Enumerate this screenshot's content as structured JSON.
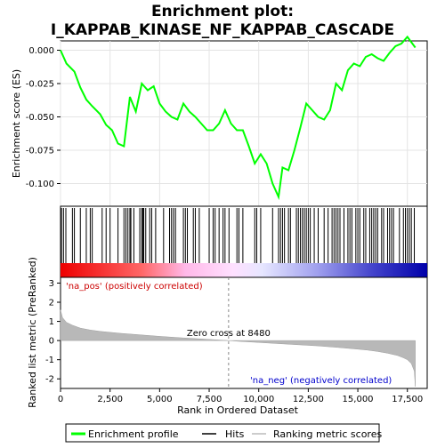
{
  "chart_data": {
    "type": "line",
    "title_line1": "Enrichment plot:",
    "title_line2": "I_KAPPAB_KINASE_NF_KAPPAB_CASCADE",
    "es_panel": {
      "ylabel": "Enrichment score (ES)",
      "ylim": [
        -0.117,
        0.007
      ],
      "yticks": [
        "0.000",
        "-0.025",
        "-0.050",
        "-0.075",
        "-0.100"
      ],
      "ytick_values": [
        0.0,
        -0.025,
        -0.05,
        -0.075,
        -0.1
      ],
      "series_name": "Enrichment profile",
      "color": "#00ff00",
      "x": [
        0,
        300,
        700,
        1000,
        1300,
        1600,
        2000,
        2300,
        2600,
        2900,
        3200,
        3500,
        3800,
        4100,
        4400,
        4700,
        5000,
        5300,
        5600,
        5900,
        6200,
        6500,
        6800,
        7100,
        7400,
        7700,
        8000,
        8300,
        8600,
        8900,
        9200,
        9500,
        9800,
        10100,
        10400,
        10700,
        11000,
        11200,
        11500,
        11800,
        12100,
        12400,
        12700,
        13000,
        13300,
        13600,
        13900,
        14200,
        14500,
        14800,
        15100,
        15400,
        15700,
        16000,
        16300,
        16600,
        16900,
        17200,
        17500,
        17900
      ],
      "y": [
        0.0,
        -0.01,
        -0.016,
        -0.028,
        -0.037,
        -0.042,
        -0.048,
        -0.056,
        -0.06,
        -0.07,
        -0.072,
        -0.035,
        -0.046,
        -0.025,
        -0.03,
        -0.027,
        -0.04,
        -0.046,
        -0.05,
        -0.052,
        -0.04,
        -0.046,
        -0.05,
        -0.055,
        -0.06,
        -0.06,
        -0.055,
        -0.045,
        -0.055,
        -0.06,
        -0.06,
        -0.072,
        -0.085,
        -0.078,
        -0.085,
        -0.1,
        -0.11,
        -0.088,
        -0.09,
        -0.075,
        -0.058,
        -0.04,
        -0.045,
        -0.05,
        -0.052,
        -0.045,
        -0.025,
        -0.03,
        -0.015,
        -0.01,
        -0.012,
        -0.005,
        -0.003,
        -0.006,
        -0.008,
        -0.002,
        0.003,
        0.005,
        0.01,
        0.002
      ]
    },
    "hits": [
      50,
      150,
      270,
      600,
      700,
      1000,
      1300,
      1500,
      1600,
      2100,
      2300,
      2500,
      2900,
      3200,
      3300,
      3400,
      3500,
      3550,
      3700,
      4000,
      4100,
      4150,
      4200,
      4300,
      4500,
      4600,
      4800,
      5200,
      5500,
      5600,
      5700,
      5800,
      6200,
      6300,
      6400,
      6700,
      6800,
      7000,
      7500,
      7700,
      7800,
      8000,
      8200,
      8300,
      8500,
      8900,
      9000,
      9200,
      9800,
      9900,
      10100,
      10700,
      11000,
      11100,
      11200,
      11300,
      11500,
      11600,
      11900,
      12000,
      12100,
      12200,
      12300,
      12400,
      12500,
      12600,
      12800,
      13000,
      13300,
      13500,
      13700,
      13800,
      13900,
      14000,
      14100,
      14300,
      14500,
      14600,
      14700,
      14900,
      15000,
      15100,
      15300,
      15400,
      15600,
      15700,
      15800,
      15900,
      16000,
      16200,
      16300,
      16500,
      16600,
      16700,
      16800,
      17100,
      17300,
      17400,
      17500,
      17600,
      17700,
      17850
    ],
    "x_axis": {
      "xlabel": "Rank in Ordered Dataset",
      "xlim": [
        0,
        18500
      ],
      "xticks": [
        "0",
        "2,500",
        "5,000",
        "7,500",
        "10,000",
        "12,500",
        "15,000",
        "17,500"
      ],
      "xtick_values": [
        0,
        2500,
        5000,
        7500,
        10000,
        12500,
        15000,
        17500
      ]
    },
    "metric_panel": {
      "ylabel": "Ranked list metric (PreRanked)",
      "ylim": [
        -2.5,
        3.3
      ],
      "yticks": [
        "3",
        "2",
        "1",
        "0",
        "-1",
        "-2"
      ],
      "ytick_values": [
        3,
        2,
        1,
        0,
        -1,
        -2
      ],
      "series_name": "Ranking metric scores",
      "color": "#b0b0b0",
      "x": [
        0,
        100,
        300,
        600,
        1000,
        1500,
        2000,
        3000,
        4000,
        5000,
        6000,
        7000,
        8000,
        8480,
        9000,
        10000,
        11000,
        12000,
        13000,
        14000,
        15000,
        15500,
        16000,
        16500,
        17000,
        17300,
        17500,
        17700,
        17850,
        17900
      ],
      "y": [
        1.6,
        1.2,
        0.95,
        0.8,
        0.65,
        0.55,
        0.48,
        0.38,
        0.3,
        0.22,
        0.15,
        0.09,
        0.03,
        0.0,
        -0.04,
        -0.1,
        -0.16,
        -0.22,
        -0.28,
        -0.36,
        -0.45,
        -0.5,
        -0.57,
        -0.66,
        -0.78,
        -0.9,
        -1.0,
        -1.2,
        -1.6,
        -2.4
      ],
      "zero_cross_label": "Zero cross at 8480",
      "zero_cross": 8480,
      "pos_label": "'na_pos' (positively correlated)",
      "neg_label": "'na_neg' (negatively correlated)"
    },
    "legend": {
      "placement": "bottom",
      "entries": [
        "Enrichment profile",
        "Hits",
        "Ranking metric scores"
      ]
    }
  }
}
